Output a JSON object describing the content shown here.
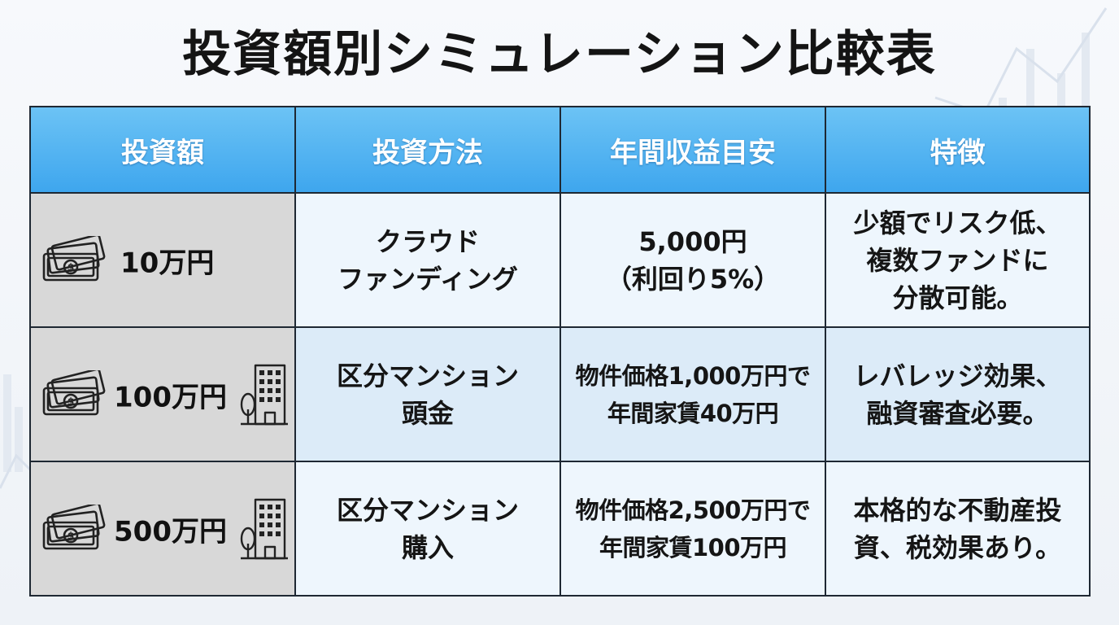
{
  "title": "投資額別シミュレーション比較表",
  "headers": [
    "投資額",
    "投資方法",
    "年間収益目安",
    "特徴"
  ],
  "rows": [
    {
      "amount": "10万円",
      "building": false,
      "method": [
        "クラウド",
        "ファンディング"
      ],
      "income": [
        "5,000円",
        "（利回り5%）"
      ],
      "feature": [
        "少額でリスク低、",
        "複数ファンドに",
        "分散可能。"
      ]
    },
    {
      "amount": "100万円",
      "building": true,
      "method": [
        "区分マンション",
        "頭金"
      ],
      "income": [
        "物件価格1,000万円で",
        "年間家賃40万円"
      ],
      "feature": [
        "レバレッジ効果、",
        "融資審査必要。"
      ]
    },
    {
      "amount": "500万円",
      "building": true,
      "method": [
        "区分マンション",
        "購入"
      ],
      "income": [
        "物件価格2,500万円で",
        "年間家賃100万円"
      ],
      "feature": [
        "本格的な不動産投",
        "資、税効果あり。"
      ]
    }
  ],
  "icons": {
    "money": "banknote-icon",
    "building": "apartment-building-icon"
  },
  "colors": {
    "header": "#4fb2f0",
    "amount_bg": "#d8d8d8",
    "row_light": "#eef6fd",
    "row_mid": "#dcebf8",
    "border": "#1e2833"
  }
}
